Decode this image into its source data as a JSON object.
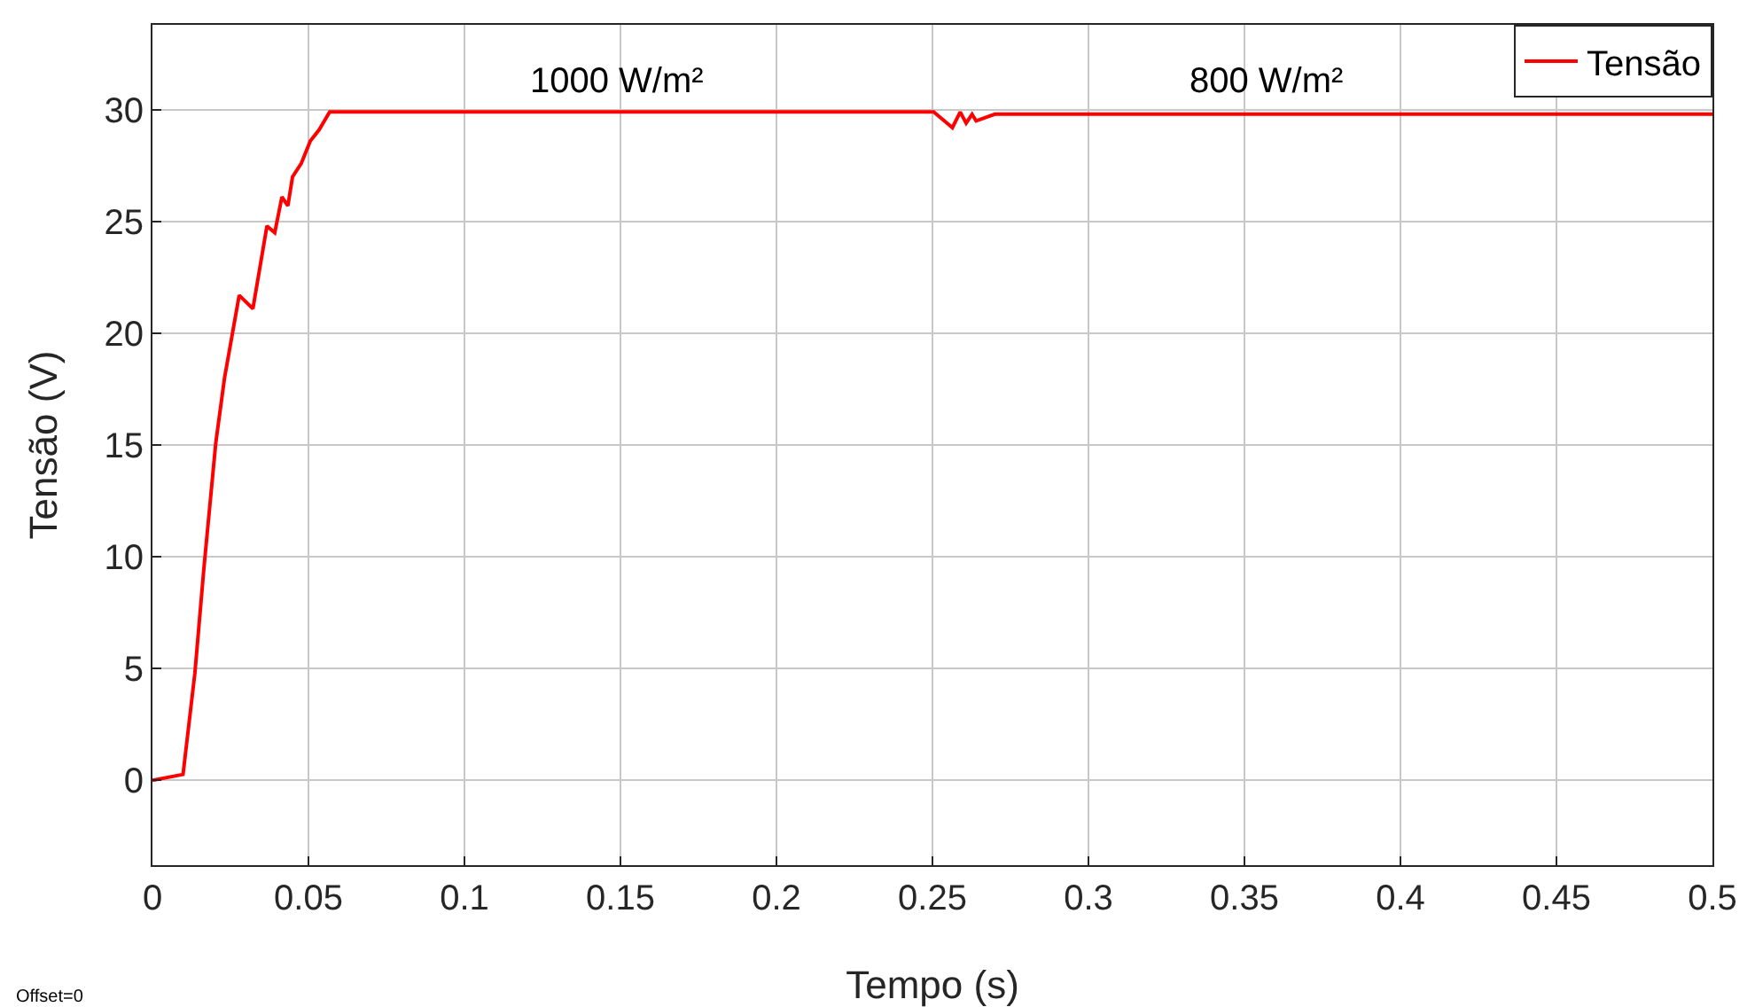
{
  "chart_data": {
    "type": "line",
    "xlabel": "Tempo (s)",
    "ylabel": "Tensão (V)",
    "xlim": [
      0,
      0.5
    ],
    "xticks": [
      0,
      0.05,
      0.1,
      0.15,
      0.2,
      0.25,
      0.3,
      0.35,
      0.4,
      0.45,
      0.5
    ],
    "ylim": [
      -3.8,
      33.8
    ],
    "yticks": [
      0,
      5,
      10,
      15,
      20,
      25,
      30
    ],
    "grid": true,
    "legend": "top right",
    "marker": "none",
    "line_style": "solid",
    "series": [
      {
        "name": "Tensão",
        "color": "#ff0000",
        "x": [
          0,
          0.0098,
          0.0136,
          0.0165,
          0.0203,
          0.0231,
          0.0278,
          0.0322,
          0.0367,
          0.0392,
          0.0415,
          0.0434,
          0.0449,
          0.0477,
          0.0506,
          0.0534,
          0.0568,
          0.1,
          0.15,
          0.2,
          0.25,
          0.2504,
          0.2564,
          0.2589,
          0.2608,
          0.2627,
          0.264,
          0.27,
          0.3,
          0.35,
          0.4,
          0.45,
          0.5
        ],
        "values": [
          0,
          0.26,
          4.8,
          9.5,
          15.1,
          18,
          21.7,
          21.1,
          24.8,
          24.5,
          26.1,
          25.7,
          27,
          27.6,
          28.6,
          29.1,
          29.9,
          29.9,
          29.9,
          29.9,
          29.9,
          29.9,
          29.2,
          29.9,
          29.4,
          29.8,
          29.5,
          29.8,
          29.8,
          29.8,
          29.8,
          29.8,
          29.8
        ]
      }
    ],
    "annotations": [
      "1000 W/m²",
      "800 W/m²",
      "Offset=0"
    ]
  }
}
